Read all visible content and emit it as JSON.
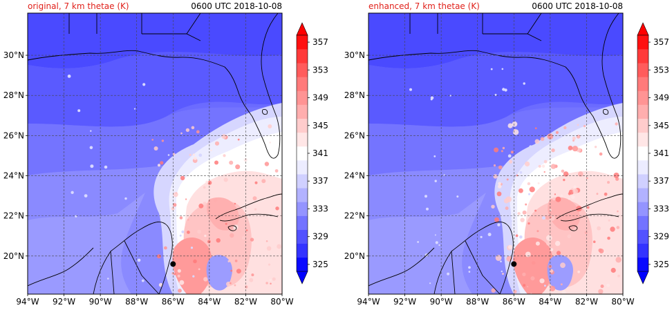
{
  "panels": [
    {
      "title_left": "original, 7 km thetae (K)",
      "title_right": "0600 UTC 2018-10-08"
    },
    {
      "title_left": "enhanced, 7 km thetae (K)",
      "title_right": "0600 UTC 2018-10-08"
    }
  ],
  "map": {
    "lon_range": [
      -94,
      -80
    ],
    "lat_range": [
      18.1,
      32.1
    ],
    "x_ticks": [
      "94°W",
      "92°W",
      "90°W",
      "88°W",
      "86°W",
      "84°W",
      "82°W",
      "80°W"
    ],
    "y_ticks": [
      "20°N",
      "22°N",
      "24°N",
      "26°N",
      "28°N",
      "30°N"
    ],
    "storm_center": {
      "lon": -86.0,
      "lat": 19.6
    }
  },
  "colorbar": {
    "labels": [
      "325",
      "329",
      "333",
      "337",
      "341",
      "345",
      "349",
      "353",
      "357"
    ],
    "colors": [
      "#0a0aff",
      "#3333ff",
      "#5252ff",
      "#7373ff",
      "#9494ff",
      "#b2b2ff",
      "#d0d0ff",
      "#ececff",
      "#ffffff",
      "#ffe6e6",
      "#ffcccc",
      "#ffaeae",
      "#ff9494",
      "#ff7a7a",
      "#ff5c5c",
      "#ff3a3a",
      "#ff1010"
    ],
    "min_color": "#0000ff",
    "max_color": "#ff0000"
  }
}
